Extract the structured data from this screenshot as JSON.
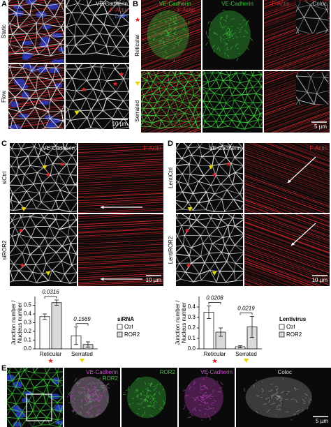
{
  "panel_a": {
    "label": "A",
    "rows": [
      "Static",
      "Flow"
    ],
    "channels": [
      "VE-Cadherin",
      "F-Actin",
      "DAPI"
    ],
    "scale": "10 µm"
  },
  "panel_b": {
    "label": "B",
    "headers": [
      [
        "VE-Cadherin",
        "F-Actin"
      ],
      [
        "VE-Cadherin"
      ],
      [
        "F-Actin"
      ],
      [
        "Coloc"
      ]
    ],
    "rows": [
      "Reticular",
      "Serrated"
    ],
    "scale": "5 µm"
  },
  "panel_c": {
    "label": "C",
    "rows": [
      "siCtrl",
      "siROR2"
    ],
    "columns": [
      "VE-Cadherin",
      "F-Actin"
    ],
    "scale": "10 µm"
  },
  "panel_d": {
    "label": "D",
    "rows": [
      "LentiCtrl",
      "LentiROR2"
    ],
    "columns": [
      "VE-Cadherin",
      "F-Actin"
    ],
    "scale": "10 µm"
  },
  "panel_e": {
    "label": "E",
    "headers": [
      [
        "VE-Cadherin",
        "ROR2"
      ],
      [
        "ROR2"
      ],
      [
        "VE-Cadherin"
      ],
      [
        "Coloc"
      ]
    ],
    "scale": "5 µm"
  },
  "chart_data": [
    {
      "type": "bar",
      "ylabel": [
        "Junction number /",
        "Nucleus number"
      ],
      "categories": [
        "Reticular",
        "Serrated"
      ],
      "series": [
        {
          "name": "Ctrl",
          "color": "#ffffff",
          "values": [
            0.37,
            0.15
          ],
          "errors": [
            0.03,
            0.1
          ]
        },
        {
          "name": "ROR2",
          "color": "#d9d9d9",
          "values": [
            0.53,
            0.05
          ],
          "errors": [
            0.03,
            0.03
          ]
        }
      ],
      "legend_title": "siRNA",
      "pvalues": [
        0.0316,
        0.1569
      ],
      "ylim": [
        0,
        0.6
      ],
      "yticks": [
        {
          "value": 0,
          "label": "0.0"
        },
        0.1,
        0.2,
        0.3,
        0.4,
        0.5
      ]
    },
    {
      "type": "bar",
      "ylabel": [
        "Junction number /",
        "Nucleus number"
      ],
      "categories": [
        "Reticular",
        "Serrated"
      ],
      "series": [
        {
          "name": "Ctrl",
          "color": "#ffffff",
          "values": [
            0.35,
            0.02
          ],
          "errors": [
            0.06,
            0.01
          ]
        },
        {
          "name": "ROR2",
          "color": "#d9d9d9",
          "values": [
            0.16,
            0.21
          ],
          "errors": [
            0.04,
            0.1
          ]
        }
      ],
      "legend_title": "Lentivirus",
      "pvalues": [
        0.0208,
        0.0219
      ],
      "ylim": [
        0,
        0.5
      ],
      "yticks": [
        {
          "value": 0,
          "label": "0.0"
        },
        0.1,
        0.2,
        0.3,
        0.4
      ]
    }
  ]
}
